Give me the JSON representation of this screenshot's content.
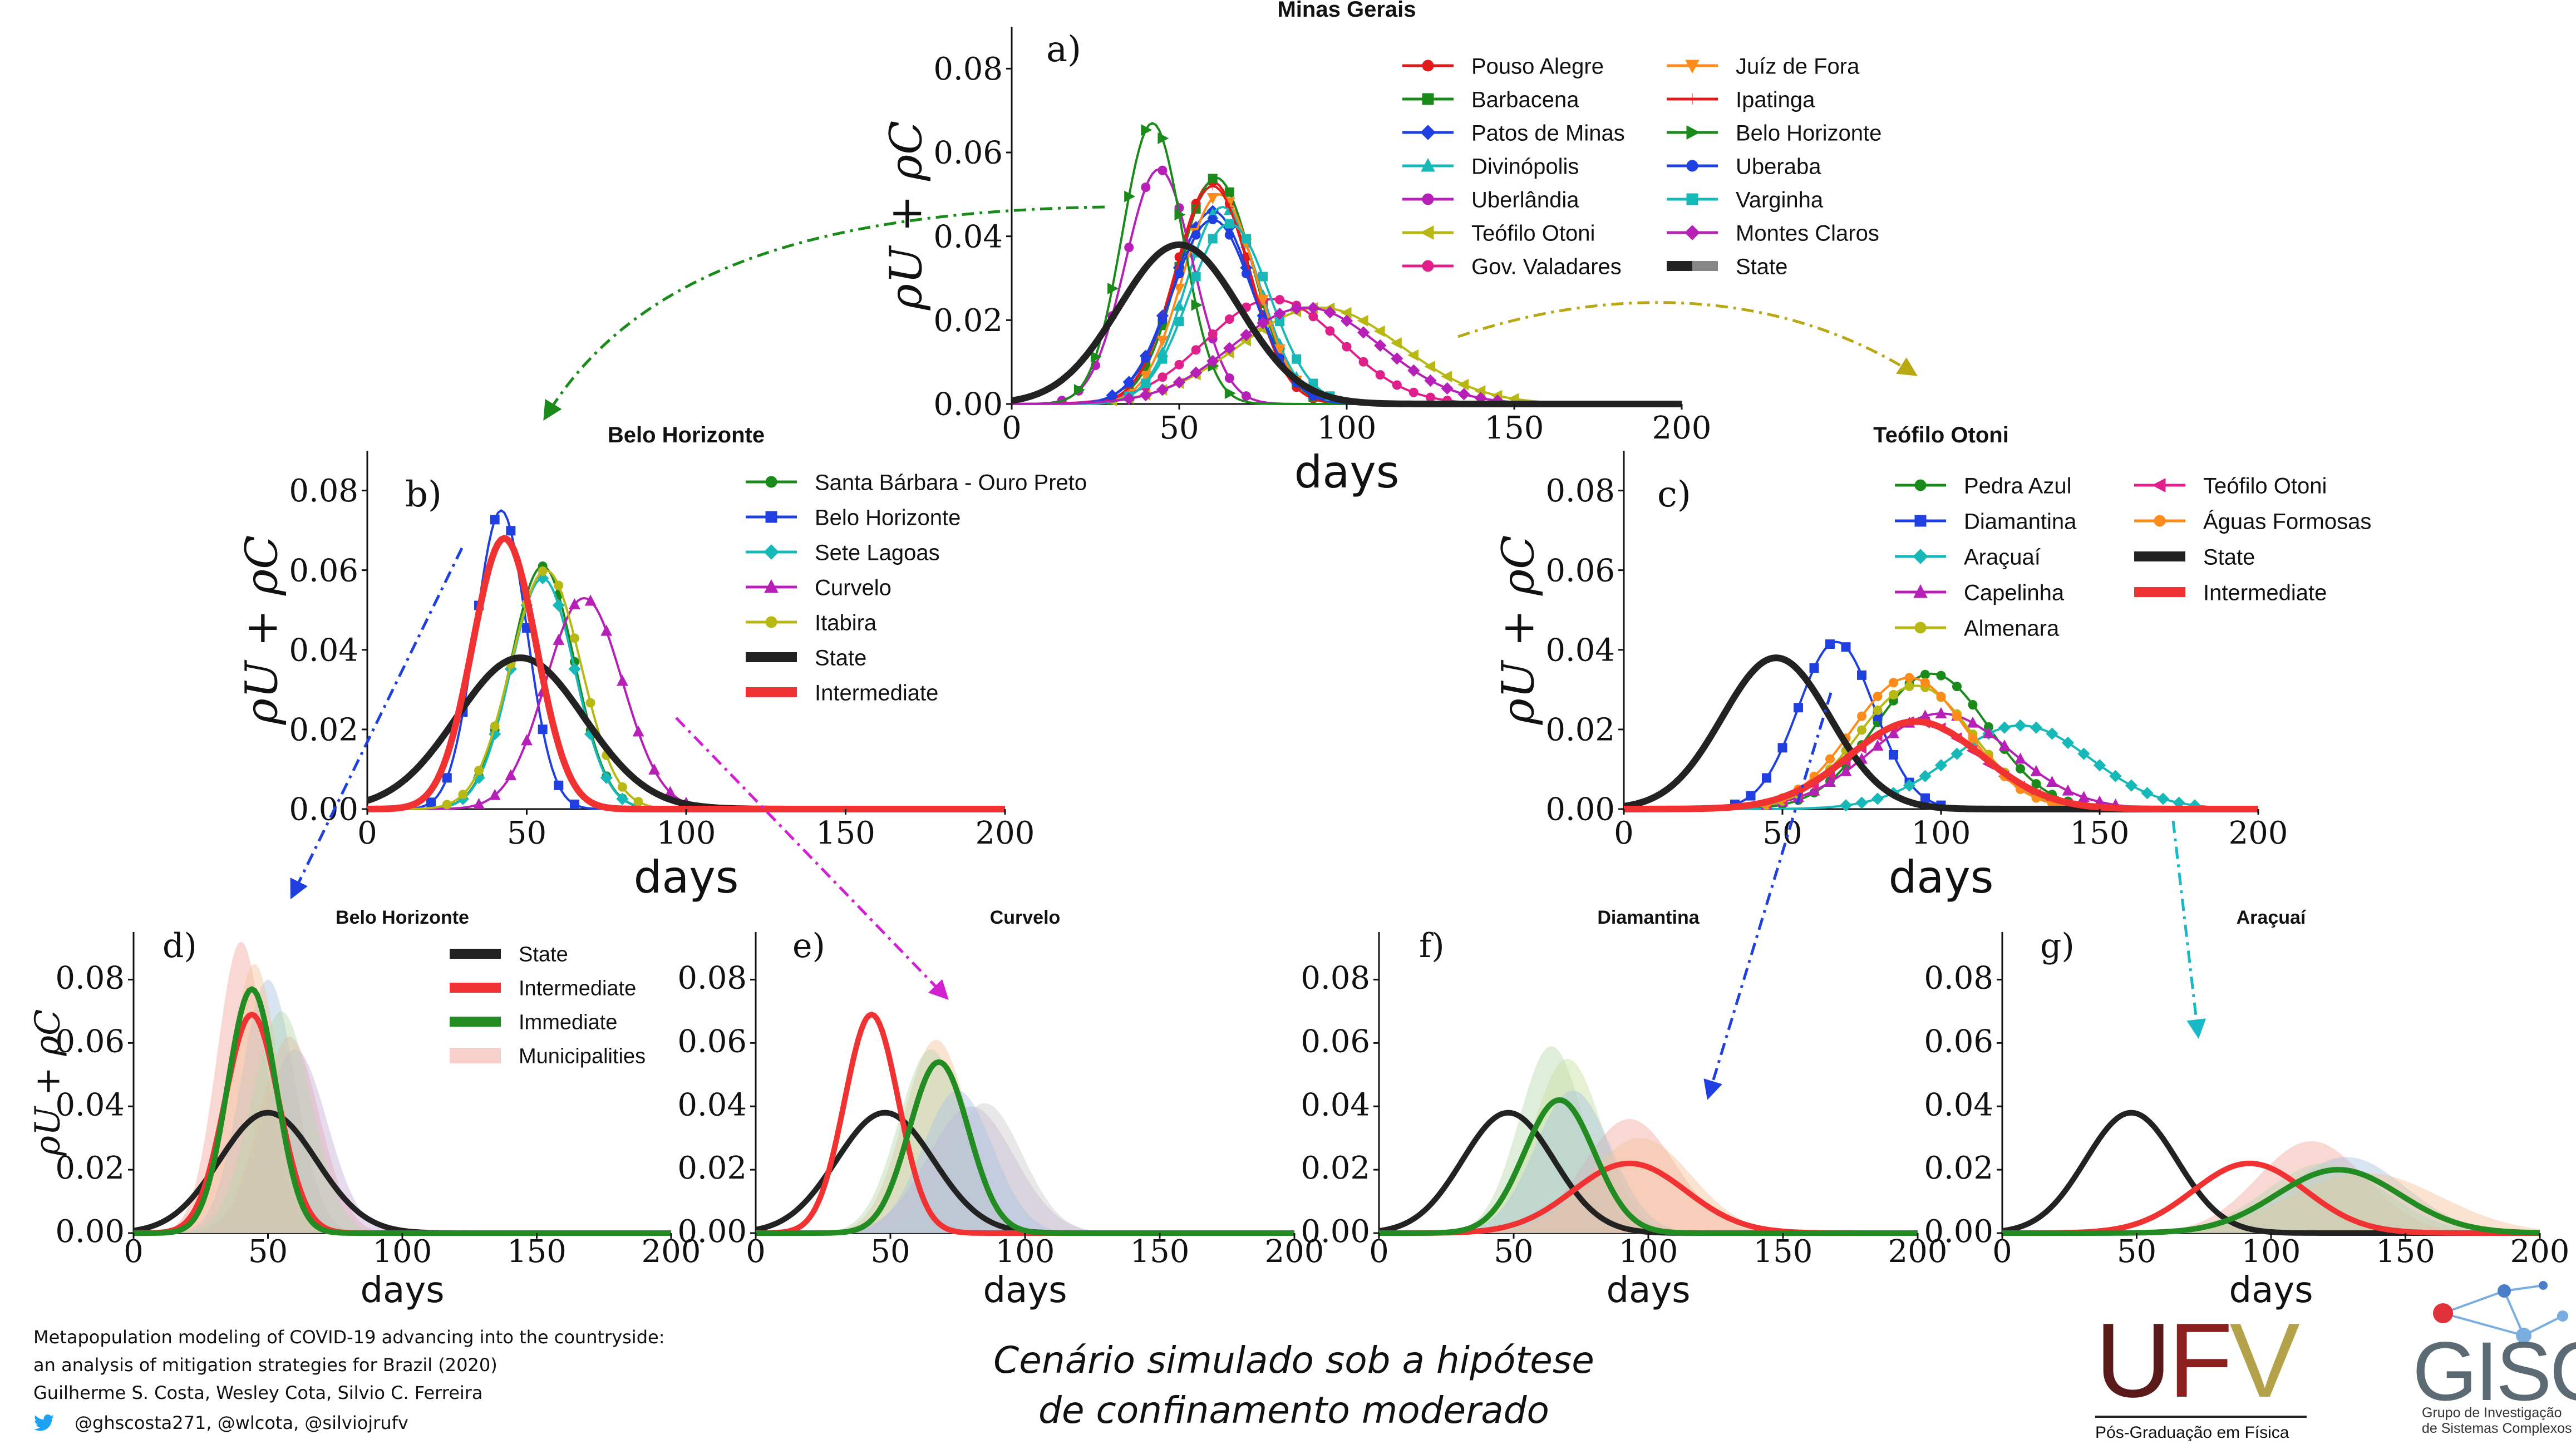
{
  "domain_note": "",
  "figure": {
    "caption_line1": "Cenário simulado sob a hipótese",
    "caption_line2": "de confinamento moderado",
    "reference_line1": "Metapopulation modeling of COVID-19 advancing into the countryside:",
    "reference_line2": "an analysis of mitigation strategies for Brazil (2020)",
    "reference_line3": "Guilherme S. Costa, Wesley Cota, Silvio C. Ferreira",
    "handles": "@ghscosta271, @wlcota, @silviojrufv",
    "ufv_logo": "UFV",
    "ufv_subtitle": "Pós-Graduação em Física",
    "gisc_logo": "GISC",
    "gisc_subtitle": "Grupo de Investigação de Sistemas Complexos"
  },
  "colors": {
    "state": "#222222",
    "intermediate": "#f03232",
    "immediate": "#228b22",
    "municipalities": "#f1a9a0"
  },
  "chart_data": [
    {
      "id": "a",
      "type": "line",
      "panel_label": "a)",
      "title": "Minas Gerais",
      "xlabel": "days",
      "ylabel": "ρU + ρC",
      "xlim": [
        0,
        200
      ],
      "ylim": [
        0,
        0.09
      ],
      "xticks": [
        "0",
        "50",
        "100",
        "150",
        "200"
      ],
      "yticks": [
        "0.00",
        "0.02",
        "0.04",
        "0.06",
        "0.08"
      ],
      "legend_position": "top-right",
      "series": [
        {
          "name": "Pouso Alegre",
          "color": "#e31a1c",
          "marker": "circle",
          "peak_x": 60,
          "peak_y": 0.053,
          "width": 11
        },
        {
          "name": "Barbacena",
          "color": "#1a8a1a",
          "marker": "square",
          "peak_x": 61,
          "peak_y": 0.054,
          "width": 11
        },
        {
          "name": "Patos de Minas",
          "color": "#1f3fe0",
          "marker": "diamond",
          "peak_x": 60,
          "peak_y": 0.046,
          "width": 12
        },
        {
          "name": "Divinópolis",
          "color": "#17b8b8",
          "marker": "triangle-up",
          "peak_x": 63,
          "peak_y": 0.047,
          "width": 11
        },
        {
          "name": "Uberlândia",
          "color": "#b620b6",
          "marker": "pentagon",
          "peak_x": 44,
          "peak_y": 0.056,
          "width": 10
        },
        {
          "name": "Teófilo Otoni",
          "color": "#b8b814",
          "marker": "triangle-left",
          "peak_x": 92,
          "peak_y": 0.023,
          "width": 24
        },
        {
          "name": "Gov. Valadares",
          "color": "#e0208a",
          "marker": "hexagon",
          "peak_x": 78,
          "peak_y": 0.025,
          "width": 20
        },
        {
          "name": "Juíz de Fora",
          "color": "#ff8c1a",
          "marker": "triangle-down",
          "peak_x": 62,
          "peak_y": 0.05,
          "width": 11
        },
        {
          "name": "Ipatinga",
          "color": "#e31a1c",
          "marker": "plus",
          "peak_x": 60,
          "peak_y": 0.052,
          "width": 11
        },
        {
          "name": "Belo Horizonte",
          "color": "#1a8a1a",
          "marker": "triangle-right",
          "peak_x": 42,
          "peak_y": 0.067,
          "width": 9
        },
        {
          "name": "Uberaba",
          "color": "#1f3fe0",
          "marker": "circle",
          "peak_x": 60,
          "peak_y": 0.044,
          "width": 12
        },
        {
          "name": "Varginha",
          "color": "#17b8b8",
          "marker": "square",
          "peak_x": 65,
          "peak_y": 0.043,
          "width": 12
        },
        {
          "name": "Montes Claros",
          "color": "#b620b6",
          "marker": "diamond",
          "peak_x": 88,
          "peak_y": 0.023,
          "width": 22
        },
        {
          "name": "State",
          "color": "#222222",
          "marker": "none",
          "peak_x": 50,
          "peak_y": 0.038,
          "width": 18,
          "thick": true
        }
      ]
    },
    {
      "id": "b",
      "type": "line",
      "panel_label": "b)",
      "title": "Belo Horizonte",
      "xlabel": "days",
      "ylabel": "ρU + ρC",
      "xlim": [
        0,
        200
      ],
      "ylim": [
        0,
        0.09
      ],
      "xticks": [
        "0",
        "50",
        "100",
        "150",
        "200"
      ],
      "yticks": [
        "0.00",
        "0.02",
        "0.04",
        "0.06",
        "0.08"
      ],
      "legend_position": "top-right",
      "series": [
        {
          "name": "Santa Bárbara - Ouro Preto",
          "color": "#1a8a1a",
          "marker": "circle",
          "peak_x": 55,
          "peak_y": 0.061,
          "width": 10
        },
        {
          "name": "Belo Horizonte",
          "color": "#1f3fe0",
          "marker": "square",
          "peak_x": 42,
          "peak_y": 0.075,
          "width": 8
        },
        {
          "name": "Sete Lagoas",
          "color": "#17b8b8",
          "marker": "diamond",
          "peak_x": 55,
          "peak_y": 0.058,
          "width": 10
        },
        {
          "name": "Curvelo",
          "color": "#b620b6",
          "marker": "triangle-up",
          "peak_x": 68,
          "peak_y": 0.053,
          "width": 12
        },
        {
          "name": "Itabira",
          "color": "#b8b814",
          "marker": "pentagon",
          "peak_x": 56,
          "peak_y": 0.06,
          "width": 11
        },
        {
          "name": "State",
          "color": "#222222",
          "marker": "none",
          "peak_x": 48,
          "peak_y": 0.038,
          "width": 20,
          "thick": true
        },
        {
          "name": "Intermediate",
          "color": "#f03232",
          "marker": "none",
          "peak_x": 43,
          "peak_y": 0.068,
          "width": 10,
          "thick": true
        }
      ]
    },
    {
      "id": "c",
      "type": "line",
      "panel_label": "c)",
      "title": "Teófilo Otoni",
      "xlabel": "days",
      "ylabel": "ρU + ρC",
      "xlim": [
        0,
        200
      ],
      "ylim": [
        0,
        0.09
      ],
      "xticks": [
        "0",
        "50",
        "100",
        "150",
        "200"
      ],
      "yticks": [
        "0.00",
        "0.02",
        "0.04",
        "0.06",
        "0.08"
      ],
      "legend_position": "top-right",
      "series": [
        {
          "name": "Pedra Azul",
          "color": "#1a8a1a",
          "marker": "circle",
          "peak_x": 97,
          "peak_y": 0.034,
          "width": 18
        },
        {
          "name": "Diamantina",
          "color": "#1f3fe0",
          "marker": "square",
          "peak_x": 67,
          "peak_y": 0.042,
          "width": 12
        },
        {
          "name": "Araçuaí",
          "color": "#17b8b8",
          "marker": "diamond",
          "peak_x": 125,
          "peak_y": 0.021,
          "width": 22
        },
        {
          "name": "Capelinha",
          "color": "#b620b6",
          "marker": "triangle-up",
          "peak_x": 100,
          "peak_y": 0.024,
          "width": 22
        },
        {
          "name": "Almenara",
          "color": "#b8b814",
          "marker": "pentagon",
          "peak_x": 92,
          "peak_y": 0.031,
          "width": 18
        },
        {
          "name": "Teófilo Otoni",
          "color": "#e0208a",
          "marker": "triangle-left",
          "peak_x": 92,
          "peak_y": 0.022,
          "width": 20
        },
        {
          "name": "Águas Formosas",
          "color": "#ff8c1a",
          "marker": "hexagon",
          "peak_x": 90,
          "peak_y": 0.033,
          "width": 18
        },
        {
          "name": "State",
          "color": "#222222",
          "marker": "none",
          "peak_x": 48,
          "peak_y": 0.038,
          "width": 17,
          "thick": true
        },
        {
          "name": "Intermediate",
          "color": "#f03232",
          "marker": "none",
          "peak_x": 92,
          "peak_y": 0.022,
          "width": 21,
          "thick": true
        }
      ]
    },
    {
      "id": "d",
      "type": "area",
      "panel_label": "d)",
      "title": "Belo Horizonte",
      "xlabel": "days",
      "ylabel": "ρU + ρC",
      "xlim": [
        0,
        200
      ],
      "ylim": [
        0,
        0.095
      ],
      "xticks": [
        "0",
        "50",
        "100",
        "150",
        "200"
      ],
      "yticks": [
        "0.00",
        "0.02",
        "0.04",
        "0.06",
        "0.08"
      ],
      "legend_position": "top-right",
      "legend_entries": [
        "State",
        "Intermediate",
        "Immediate",
        "Municipalities"
      ],
      "series": [
        {
          "name": "State",
          "color": "#222222",
          "peak_x": 50,
          "peak_y": 0.038,
          "width": 18
        },
        {
          "name": "Intermediate",
          "color": "#f03232",
          "peak_x": 44,
          "peak_y": 0.069,
          "width": 10
        },
        {
          "name": "Immediate",
          "color": "#228b22",
          "peak_x": 44,
          "peak_y": 0.077,
          "width": 9
        }
      ],
      "municipalities": [
        {
          "color": "#f1a9a0",
          "peak_x": 40,
          "peak_y": 0.092,
          "width": 9
        },
        {
          "color": "#a8c4e0",
          "peak_x": 50,
          "peak_y": 0.08,
          "width": 10
        },
        {
          "color": "#f1a9a0",
          "peak_x": 58,
          "peak_y": 0.062,
          "width": 11
        },
        {
          "color": "#c8b0d8",
          "peak_x": 60,
          "peak_y": 0.058,
          "width": 12
        },
        {
          "color": "#f5c49a",
          "peak_x": 45,
          "peak_y": 0.085,
          "width": 9
        },
        {
          "color": "#b9d8b0",
          "peak_x": 55,
          "peak_y": 0.07,
          "width": 11
        }
      ]
    },
    {
      "id": "e",
      "type": "area",
      "panel_label": "e)",
      "title": "Curvelo",
      "xlabel": "days",
      "ylabel": "",
      "xlim": [
        0,
        200
      ],
      "ylim": [
        0,
        0.095
      ],
      "xticks": [
        "0",
        "50",
        "100",
        "150",
        "200"
      ],
      "yticks": [
        "0.00",
        "0.02",
        "0.04",
        "0.06",
        "0.08"
      ],
      "series": [
        {
          "name": "State",
          "color": "#222222",
          "peak_x": 48,
          "peak_y": 0.038,
          "width": 18
        },
        {
          "name": "Intermediate",
          "color": "#f03232",
          "peak_x": 43,
          "peak_y": 0.069,
          "width": 10
        },
        {
          "name": "Immediate",
          "color": "#228b22",
          "peak_x": 68,
          "peak_y": 0.054,
          "width": 11
        }
      ],
      "municipalities": [
        {
          "color": "#f5c49a",
          "peak_x": 67,
          "peak_y": 0.061,
          "width": 12
        },
        {
          "color": "#b9d8b0",
          "peak_x": 65,
          "peak_y": 0.058,
          "width": 12
        },
        {
          "color": "#c8b0d8",
          "peak_x": 80,
          "peak_y": 0.04,
          "width": 16
        },
        {
          "color": "#cccccc",
          "peak_x": 85,
          "peak_y": 0.041,
          "width": 14
        },
        {
          "color": "#a8c4e0",
          "peak_x": 75,
          "peak_y": 0.045,
          "width": 13
        }
      ]
    },
    {
      "id": "f",
      "type": "area",
      "panel_label": "f)",
      "title": "Diamantina",
      "xlabel": "days",
      "ylabel": "",
      "xlim": [
        0,
        200
      ],
      "ylim": [
        0,
        0.095
      ],
      "xticks": [
        "0",
        "50",
        "100",
        "150",
        "200"
      ],
      "yticks": [
        "0.00",
        "0.02",
        "0.04",
        "0.06",
        "0.08"
      ],
      "series": [
        {
          "name": "State",
          "color": "#222222",
          "peak_x": 48,
          "peak_y": 0.038,
          "width": 17
        },
        {
          "name": "Intermediate",
          "color": "#f03232",
          "peak_x": 93,
          "peak_y": 0.022,
          "width": 21
        },
        {
          "name": "Immediate",
          "color": "#228b22",
          "peak_x": 67,
          "peak_y": 0.042,
          "width": 13
        }
      ],
      "municipalities": [
        {
          "color": "#b9d8b0",
          "peak_x": 64,
          "peak_y": 0.059,
          "width": 12
        },
        {
          "color": "#c8e0a0",
          "peak_x": 70,
          "peak_y": 0.055,
          "width": 13
        },
        {
          "color": "#f1a9a0",
          "peak_x": 93,
          "peak_y": 0.036,
          "width": 17
        },
        {
          "color": "#a8c4e0",
          "peak_x": 72,
          "peak_y": 0.045,
          "width": 14
        },
        {
          "color": "#f5c49a",
          "peak_x": 97,
          "peak_y": 0.03,
          "width": 19
        }
      ]
    },
    {
      "id": "g",
      "type": "area",
      "panel_label": "g)",
      "title": "Araçuaí",
      "xlabel": "days",
      "ylabel": "",
      "xlim": [
        0,
        200
      ],
      "ylim": [
        0,
        0.095
      ],
      "xticks": [
        "0",
        "50",
        "100",
        "150",
        "200"
      ],
      "yticks": [
        "0.00",
        "0.02",
        "0.04",
        "0.06",
        "0.08"
      ],
      "series": [
        {
          "name": "State",
          "color": "#222222",
          "peak_x": 48,
          "peak_y": 0.038,
          "width": 17
        },
        {
          "name": "Intermediate",
          "color": "#f03232",
          "peak_x": 92,
          "peak_y": 0.022,
          "width": 21
        },
        {
          "name": "Immediate",
          "color": "#228b22",
          "peak_x": 125,
          "peak_y": 0.02,
          "width": 23
        }
      ],
      "municipalities": [
        {
          "color": "#f1a9a0",
          "peak_x": 115,
          "peak_y": 0.029,
          "width": 20
        },
        {
          "color": "#a8c4e0",
          "peak_x": 128,
          "peak_y": 0.024,
          "width": 22
        },
        {
          "color": "#f5c49a",
          "peak_x": 135,
          "peak_y": 0.019,
          "width": 28
        },
        {
          "color": "#b9d8b0",
          "peak_x": 120,
          "peak_y": 0.022,
          "width": 22
        }
      ]
    }
  ]
}
